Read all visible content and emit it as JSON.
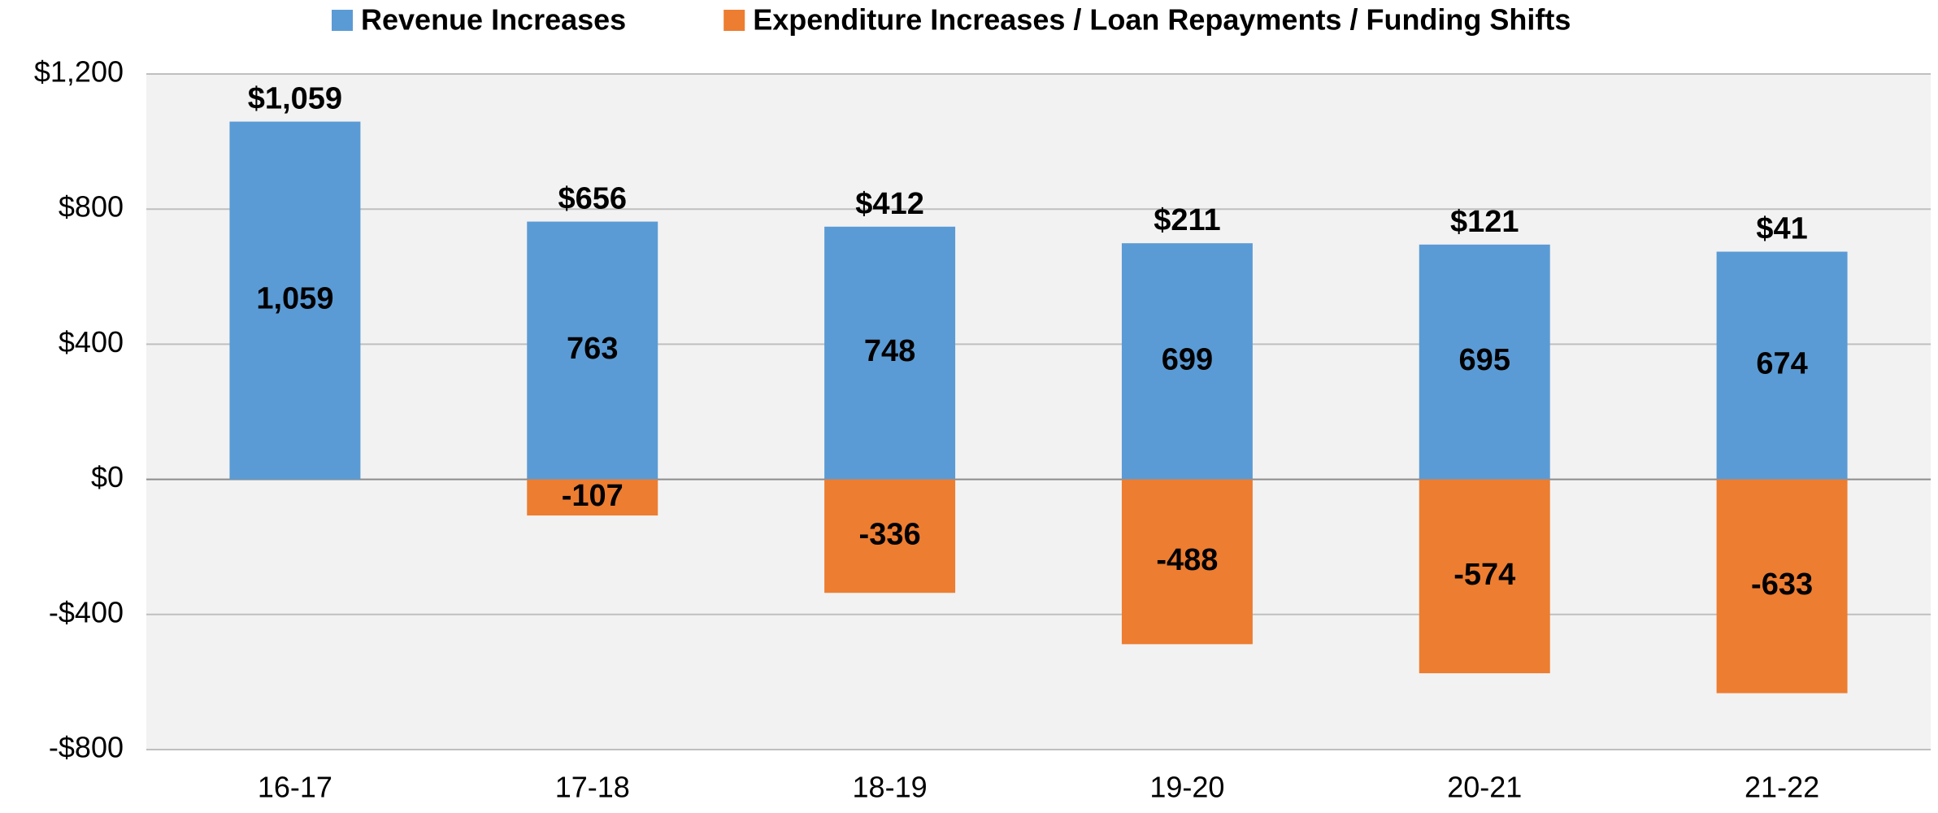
{
  "chart_data": {
    "type": "bar",
    "stacked": true,
    "categories": [
      "16-17",
      "17-18",
      "18-19",
      "19-20",
      "20-21",
      "21-22"
    ],
    "series": [
      {
        "name": "Revenue Increases",
        "color": "#5b9bd5",
        "values": [
          1059,
          763,
          748,
          699,
          695,
          674
        ],
        "value_labels": [
          "1,059",
          "763",
          "748",
          "699",
          "695",
          "674"
        ]
      },
      {
        "name": "Expenditure Increases / Loan Repayments / Funding Shifts",
        "color": "#ed7d31",
        "values": [
          0,
          -107,
          -336,
          -488,
          -574,
          -633
        ],
        "value_labels": [
          null,
          "-107",
          "-336",
          "-488",
          "-574",
          "-633"
        ]
      }
    ],
    "totals": [
      1059,
      656,
      412,
      211,
      121,
      41
    ],
    "total_labels": [
      "$1,059",
      "$656",
      "$412",
      "$211",
      "$121",
      "$41"
    ],
    "ylim": [
      -800,
      1200
    ],
    "yticks": [
      {
        "value": -800,
        "label": "-$800"
      },
      {
        "value": -400,
        "label": "-$400"
      },
      {
        "value": 0,
        "label": "$0"
      },
      {
        "value": 400,
        "label": "$400"
      },
      {
        "value": 800,
        "label": "$800"
      },
      {
        "value": 1200,
        "label": "$1,200"
      }
    ],
    "grid": true,
    "legend": "top"
  }
}
